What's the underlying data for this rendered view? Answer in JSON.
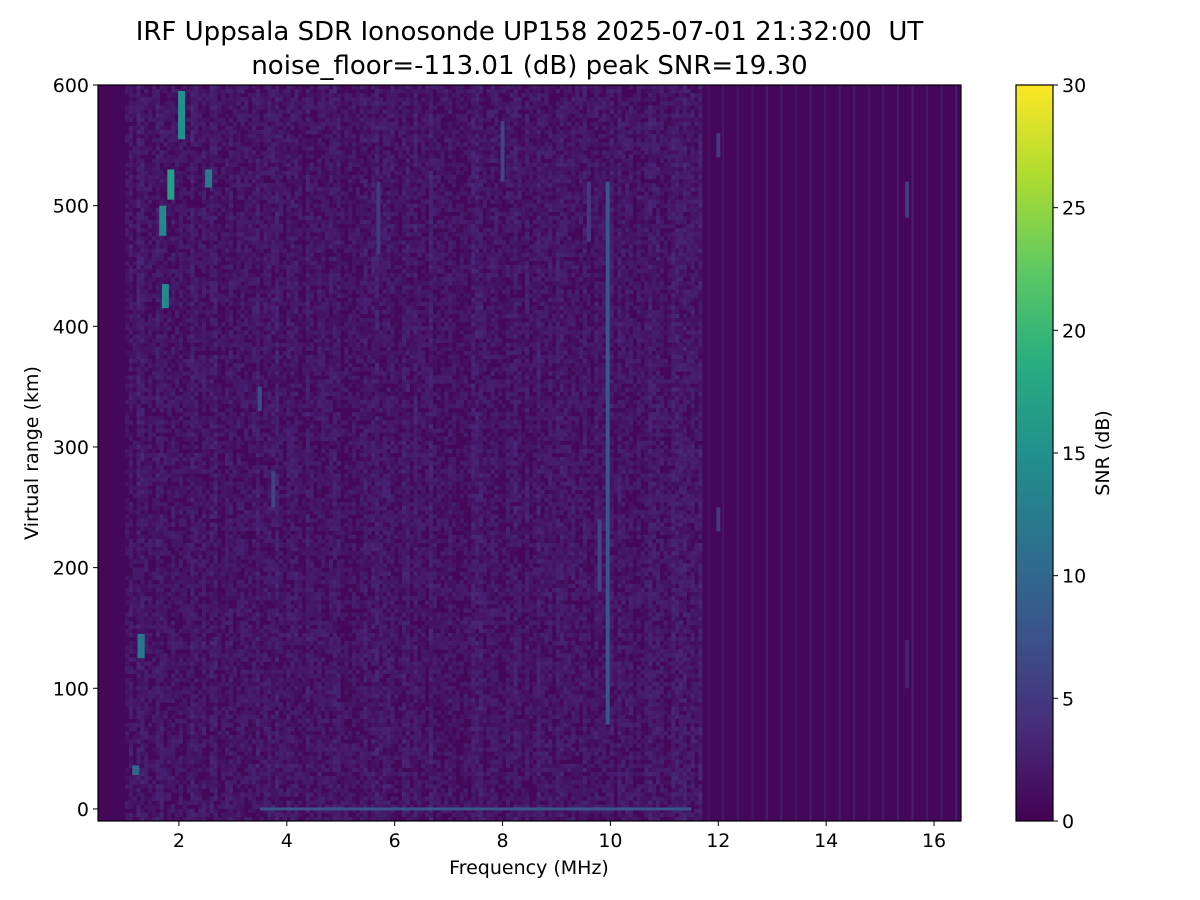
{
  "chart_data": {
    "type": "heatmap",
    "title": "IRF Uppsala SDR Ionosonde UP158 2025-07-01 21:32:00  UT",
    "subtitle": "noise_floor=-113.01 (dB) peak SNR=19.30",
    "xlabel": "Frequency (MHz)",
    "ylabel": "Virtual range (km)",
    "xlim": [
      0.5,
      16.5
    ],
    "ylim": [
      -10,
      600
    ],
    "xticks": [
      2,
      4,
      6,
      8,
      10,
      12,
      14,
      16
    ],
    "yticks": [
      0,
      100,
      200,
      300,
      400,
      500,
      600
    ],
    "colorbar": {
      "label": "SNR (dB)",
      "range": [
        0,
        30
      ],
      "ticks": [
        0,
        5,
        10,
        15,
        20,
        25,
        30
      ],
      "colormap": "viridis"
    },
    "background_level_db": 0.5,
    "noise_band_mhz": [
      1.0,
      11.7
    ],
    "noise_level_db": [
      0,
      4
    ],
    "vertical_streaks": [
      {
        "freq": 9.95,
        "from": 70,
        "to": 520,
        "snr": 8
      },
      {
        "freq": 9.8,
        "from": 180,
        "to": 240,
        "snr": 6
      },
      {
        "freq": 8.0,
        "from": 520,
        "to": 570,
        "snr": 6
      },
      {
        "freq": 5.7,
        "from": 460,
        "to": 520,
        "snr": 5
      },
      {
        "freq": 9.6,
        "from": 470,
        "to": 520,
        "snr": 5
      },
      {
        "freq": 3.5,
        "from": 330,
        "to": 350,
        "snr": 7
      },
      {
        "freq": 3.75,
        "from": 250,
        "to": 280,
        "snr": 6
      },
      {
        "freq": 12.0,
        "from": 230,
        "to": 250,
        "snr": 5
      },
      {
        "freq": 12.0,
        "from": 540,
        "to": 560,
        "snr": 5
      },
      {
        "freq": 15.5,
        "from": 490,
        "to": 520,
        "snr": 5
      },
      {
        "freq": 15.5,
        "from": 100,
        "to": 140,
        "snr": 3
      }
    ],
    "echo_patches": [
      {
        "freq": 2.05,
        "from": 555,
        "to": 595,
        "snr": 15
      },
      {
        "freq": 1.85,
        "from": 505,
        "to": 530,
        "snr": 17
      },
      {
        "freq": 1.7,
        "from": 475,
        "to": 500,
        "snr": 14
      },
      {
        "freq": 1.75,
        "from": 415,
        "to": 435,
        "snr": 14
      },
      {
        "freq": 2.55,
        "from": 515,
        "to": 530,
        "snr": 12
      },
      {
        "freq": 1.3,
        "from": 125,
        "to": 145,
        "snr": 12
      },
      {
        "freq": 1.2,
        "from": 28,
        "to": 36,
        "snr": 10
      }
    ],
    "baseline_echo": {
      "range_km": 0,
      "from": 3.5,
      "to": 11.5,
      "snr": 8
    }
  }
}
